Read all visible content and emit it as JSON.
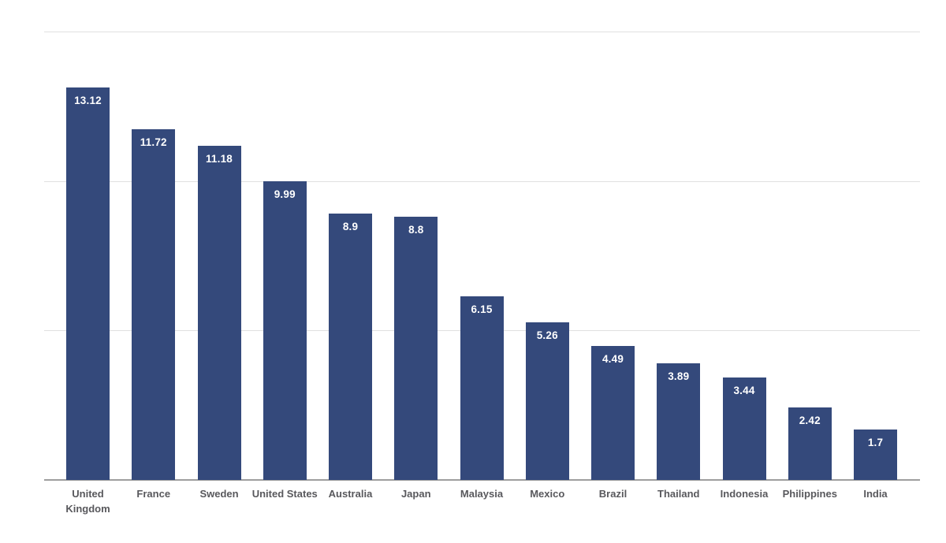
{
  "chart_data": {
    "type": "bar",
    "title": "",
    "xlabel": "",
    "ylabel": "",
    "categories": [
      "United Kingdom",
      "France",
      "Sweden",
      "United States",
      "Australia",
      "Japan",
      "Malaysia",
      "Mexico",
      "Brazil",
      "Thailand",
      "Indonesia",
      "Philippines",
      "India"
    ],
    "values": [
      13.12,
      11.72,
      11.18,
      9.99,
      8.9,
      8.8,
      6.15,
      5.26,
      4.49,
      3.89,
      3.44,
      2.42,
      1.7
    ],
    "value_labels": [
      "13.12",
      "11.72",
      "11.18",
      "9.99",
      "8.9",
      "8.8",
      "6.15",
      "5.26",
      "4.49",
      "3.89",
      "3.44",
      "2.42",
      "1.7"
    ],
    "ylim": [
      0,
      15
    ],
    "gridline_values": [
      5,
      10,
      15
    ],
    "grid": true,
    "legend": "none",
    "colors": {
      "bar": "#34497b",
      "value_label": "#ffffff",
      "axis_label": "#58585c",
      "gridline": "#e0e0e0",
      "axis_line": "#9e9e9e",
      "background": "#ffffff"
    }
  }
}
